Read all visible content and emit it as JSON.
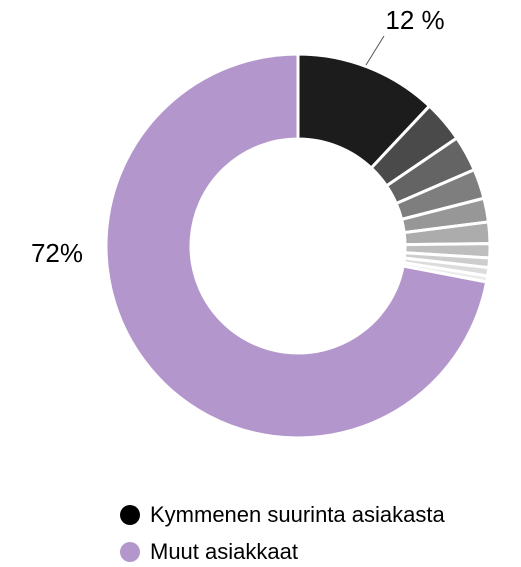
{
  "chart_data": {
    "type": "donut",
    "values": [
      12,
      3.5,
      3,
      2.5,
      2,
      1.8,
      1.2,
      0.8,
      0.7,
      0.5,
      72
    ],
    "value_labels": [
      "12 %",
      null,
      null,
      null,
      null,
      null,
      null,
      null,
      null,
      null,
      "72%"
    ],
    "colors": [
      "#1c1c1c",
      "#4a4a4a",
      "#646464",
      "#7e7e7e",
      "#979797",
      "#acacac",
      "#bebebe",
      "#cdcdcd",
      "#dcdcdc",
      "#ebebeb",
      "#b397cc"
    ],
    "legend": [
      {
        "name": "Kymmenen suurinta asiakasta",
        "color": "#000000"
      },
      {
        "name": "Muut asiakkaat",
        "color": "#b397cc"
      }
    ]
  }
}
